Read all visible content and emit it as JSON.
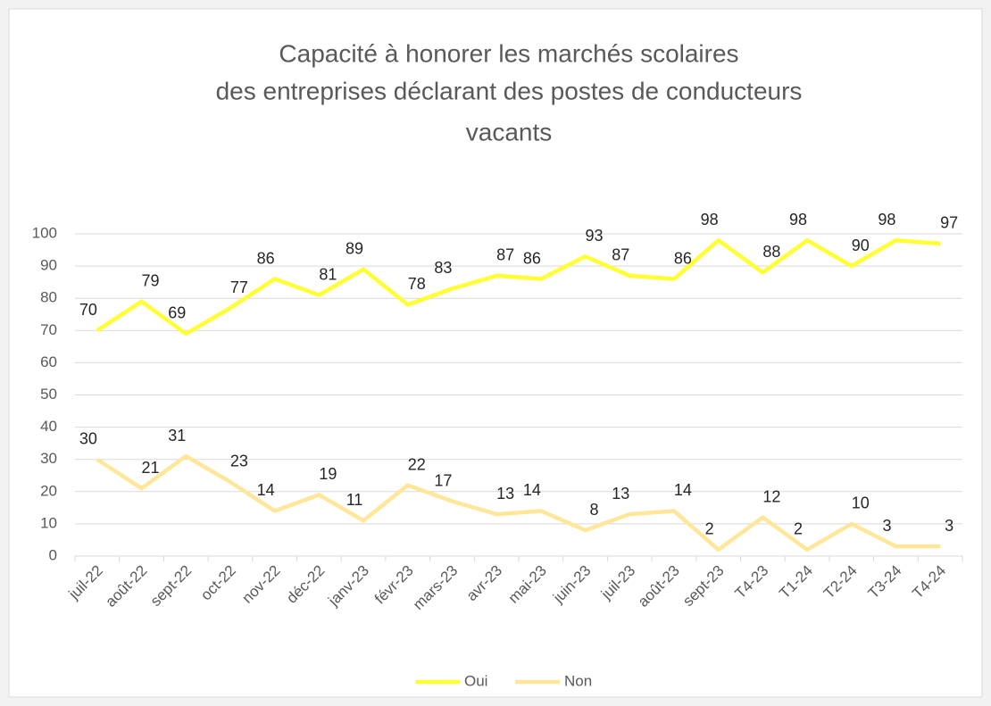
{
  "chart_data": {
    "type": "line",
    "title": [
      "Capacité à honorer les marchés scolaires",
      "des entreprises déclarant des postes de conducteurs",
      "vacants"
    ],
    "categories": [
      "juil-22",
      "août-22",
      "sept-22",
      "oct-22",
      "nov-22",
      "déc-22",
      "janv-23",
      "févr-23",
      "mars-23",
      "avr-23",
      "mai-23",
      "juin-23",
      "juil-23",
      "août-23",
      "sept-23",
      "T4-23",
      "T1-24",
      "T2-24",
      "T3-24",
      "T4-24"
    ],
    "series": [
      {
        "name": "Oui",
        "color": "#ffff33",
        "values": [
          70,
          79,
          69,
          77,
          86,
          81,
          89,
          78,
          83,
          87,
          86,
          93,
          87,
          86,
          98,
          88,
          98,
          90,
          98,
          97
        ]
      },
      {
        "name": "Non",
        "color": "#ffe699",
        "values": [
          30,
          21,
          31,
          23,
          14,
          19,
          11,
          22,
          17,
          13,
          14,
          8,
          13,
          14,
          2,
          12,
          2,
          10,
          3,
          3
        ]
      }
    ],
    "ylim": [
      0,
      100
    ],
    "yticks": [
      0,
      10,
      20,
      30,
      40,
      50,
      60,
      70,
      80,
      90,
      100
    ],
    "grid": true,
    "legend": "bottom"
  }
}
